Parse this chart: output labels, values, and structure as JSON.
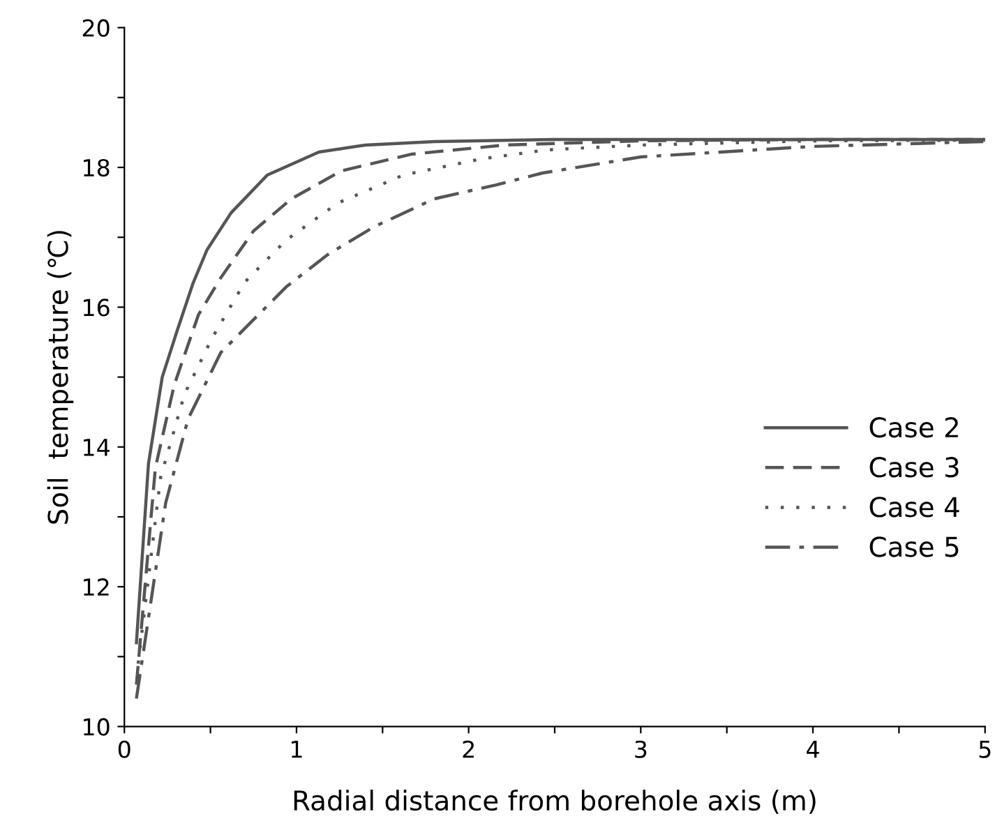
{
  "chart_data": {
    "type": "line",
    "xlabel": "Radial distance from borehole axis (m)",
    "ylabel": "Soil  temperature (℃)",
    "xlim": [
      0,
      5
    ],
    "ylim": [
      10,
      20
    ],
    "xticks": [
      0,
      {
        "value": 0.5,
        "label": null
      },
      1,
      {
        "value": 1.5,
        "label": null
      },
      2,
      {
        "value": 2.5,
        "label": null
      },
      3,
      {
        "value": 3.5,
        "label": null
      },
      4,
      {
        "value": 4.5,
        "label": null
      },
      5
    ],
    "yticks": [
      10,
      {
        "value": 11,
        "label": null
      },
      12,
      {
        "value": 13,
        "label": null
      },
      14,
      {
        "value": 15,
        "label": null
      },
      16,
      {
        "value": 17,
        "label": null
      },
      18,
      {
        "value": 19,
        "label": null
      },
      20
    ],
    "grid": false,
    "legend": "bottom right",
    "series": [
      {
        "name": "Case 2",
        "color": "#555555",
        "line_style": "solid",
        "x": [
          0.07,
          0.14,
          0.22,
          0.31,
          0.4,
          0.48,
          0.62,
          0.83,
          1.13,
          1.4,
          1.8,
          2.5,
          3.5,
          5
        ],
        "values": [
          11.2,
          13.76,
          15.0,
          15.69,
          16.35,
          16.82,
          17.35,
          17.89,
          18.22,
          18.32,
          18.37,
          18.4,
          18.4,
          18.4
        ]
      },
      {
        "name": "Case 3",
        "color": "#555555",
        "line_style": "dashed",
        "x": [
          0.07,
          0.18,
          0.29,
          0.43,
          0.56,
          0.75,
          0.97,
          1.26,
          1.67,
          2.21,
          3,
          4,
          5
        ],
        "values": [
          10.6,
          13.7,
          14.89,
          15.89,
          16.42,
          17.09,
          17.55,
          17.95,
          18.19,
          18.32,
          18.38,
          18.4,
          18.4
        ]
      },
      {
        "name": "Case 4",
        "color": "#555555",
        "line_style": "dotted",
        "x": [
          0.08,
          0.21,
          0.35,
          0.51,
          0.7,
          0.94,
          1.24,
          1.62,
          2.07,
          2.45,
          3,
          4,
          5
        ],
        "values": [
          10.9,
          13.56,
          14.76,
          15.56,
          16.36,
          16.96,
          17.49,
          17.89,
          18.12,
          18.25,
          18.32,
          18.38,
          18.39
        ]
      },
      {
        "name": "Case 5",
        "color": "#555555",
        "line_style": "dashdot",
        "x": [
          0.07,
          0.24,
          0.37,
          0.56,
          0.75,
          0.94,
          1.18,
          1.45,
          1.8,
          2.16,
          2.43,
          3,
          4,
          5
        ],
        "values": [
          10.4,
          13.2,
          14.4,
          15.35,
          15.82,
          16.29,
          16.75,
          17.15,
          17.55,
          17.75,
          17.92,
          18.15,
          18.3,
          18.37
        ]
      }
    ]
  }
}
